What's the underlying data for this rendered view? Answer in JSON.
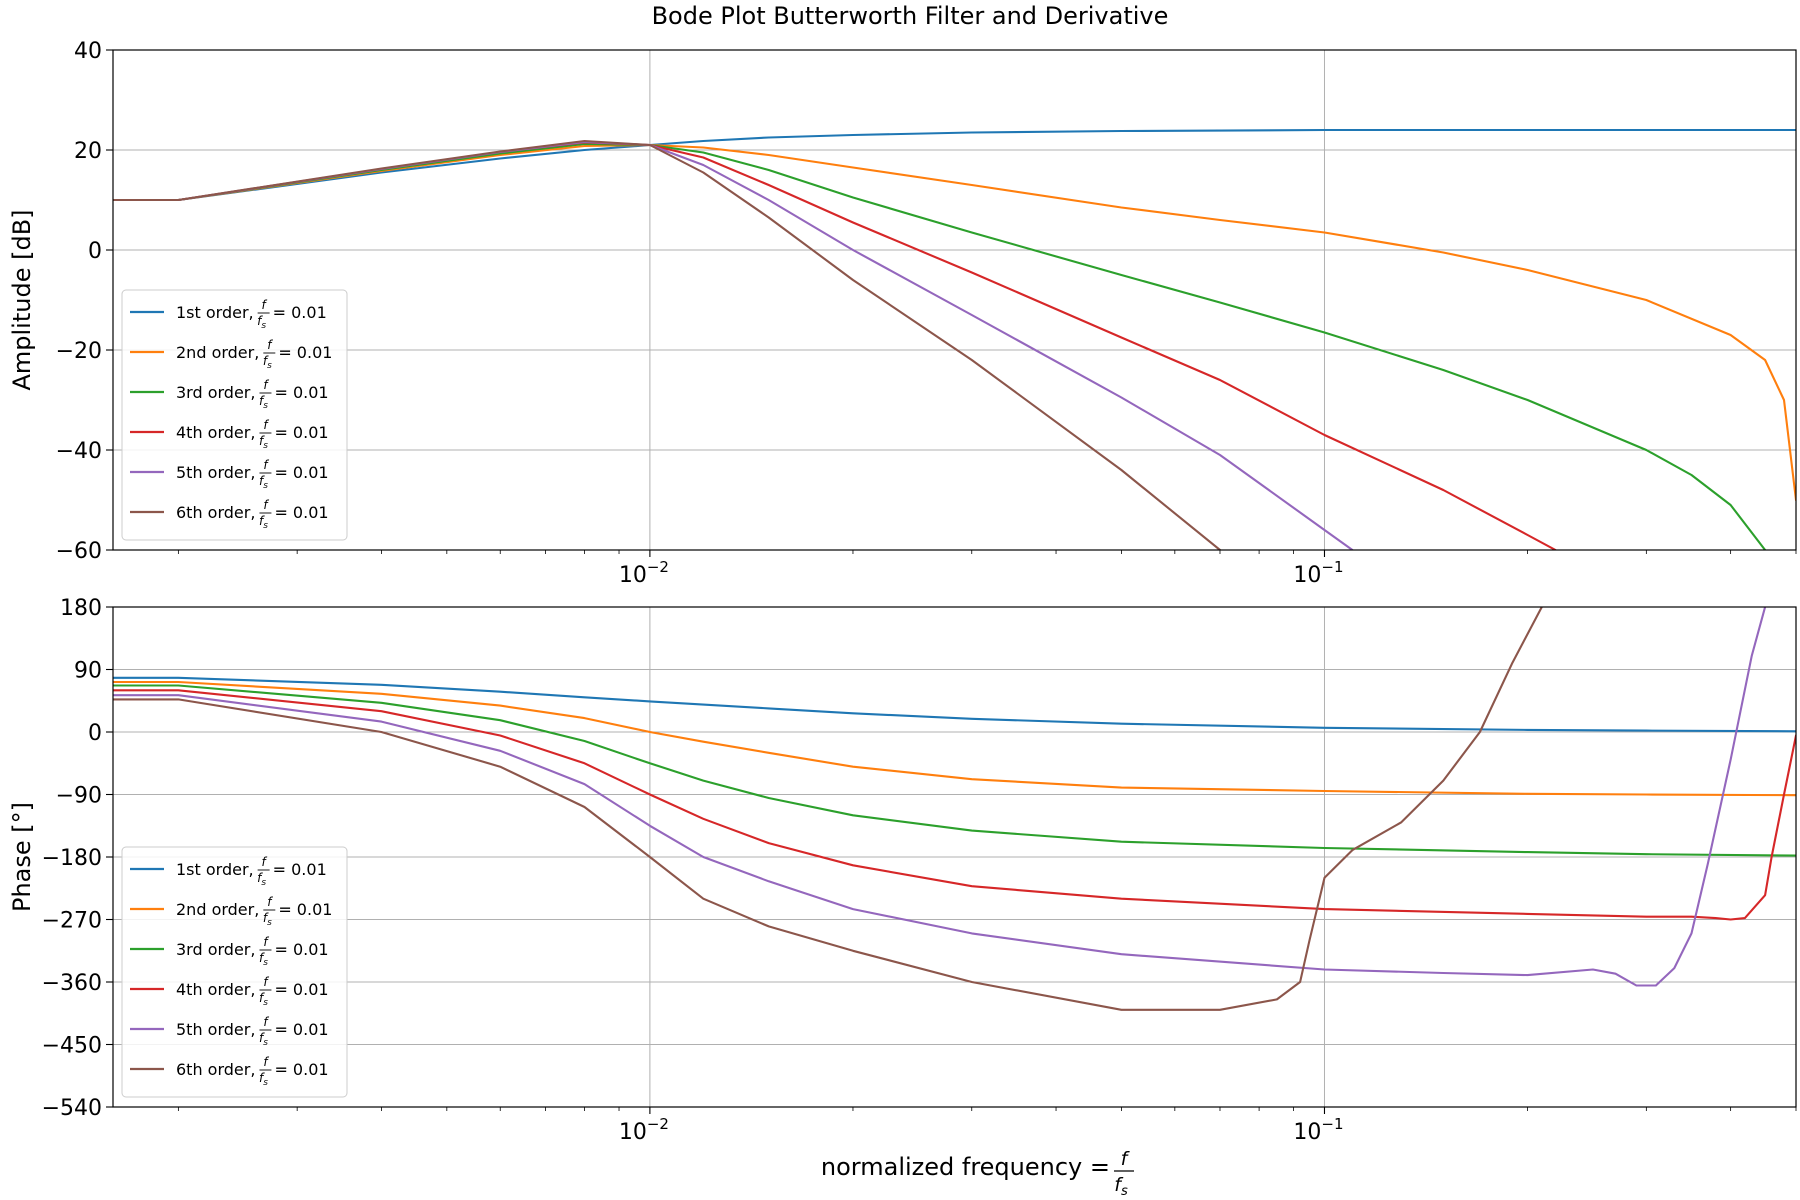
{
  "figure": {
    "title": "Bode Plot Butterworth Filter and Derivative",
    "xlabel_text": "normalized frequency = ",
    "xlabel_num": "f",
    "xlabel_den": "f",
    "xlabel_den_sub": "s"
  },
  "legend_labels": {
    "suffix": " = 0.01",
    "frac_num": "f",
    "frac_den": "f",
    "frac_den_sub": "s"
  },
  "chart_data": [
    {
      "type": "line",
      "title": "Bode Plot Butterworth Filter and Derivative",
      "xscale": "log",
      "xlim": [
        0.0016,
        0.5
      ],
      "xticks": [
        0.01,
        0.1
      ],
      "xtick_labels": [
        {
          "base": "10",
          "exp": "−2"
        },
        {
          "base": "10",
          "exp": "−1"
        }
      ],
      "ylabel": "Amplitude [dB]",
      "ylim": [
        -60,
        40
      ],
      "yticks": [
        40,
        20,
        0,
        -20,
        -40,
        -60
      ],
      "ytick_labels": [
        "40",
        "20",
        "0",
        "−20",
        "−40",
        "−60"
      ],
      "grid": true,
      "legend_position": "lower-left",
      "series": [
        {
          "name": "1st order",
          "color": "#1f77b4",
          "x": [
            0.0016,
            0.002,
            0.004,
            0.006,
            0.008,
            0.01,
            0.012,
            0.015,
            0.02,
            0.03,
            0.05,
            0.1,
            0.2,
            0.3,
            0.4,
            0.5
          ],
          "y": [
            10,
            10,
            15.5,
            18.3,
            20,
            21,
            21.8,
            22.5,
            23,
            23.5,
            23.8,
            24,
            24,
            24,
            24,
            24
          ]
        },
        {
          "name": "2nd order",
          "color": "#ff7f0e",
          "x": [
            0.0016,
            0.002,
            0.004,
            0.006,
            0.008,
            0.01,
            0.012,
            0.015,
            0.02,
            0.03,
            0.05,
            0.07,
            0.1,
            0.15,
            0.2,
            0.3,
            0.4,
            0.45,
            0.48,
            0.5
          ],
          "y": [
            10,
            10,
            15.8,
            19,
            20.8,
            21,
            20.5,
            19,
            16.5,
            13,
            8.5,
            6,
            3.5,
            -0.5,
            -4,
            -10,
            -17,
            -22,
            -30,
            -50
          ]
        },
        {
          "name": "3rd order",
          "color": "#2ca02c",
          "x": [
            0.0016,
            0.002,
            0.004,
            0.006,
            0.008,
            0.01,
            0.012,
            0.015,
            0.02,
            0.03,
            0.05,
            0.07,
            0.1,
            0.15,
            0.2,
            0.3,
            0.35,
            0.4,
            0.45
          ],
          "y": [
            10,
            10,
            16,
            19.3,
            21.2,
            21,
            19.5,
            16,
            10.5,
            3.5,
            -5,
            -10.5,
            -16.5,
            -24,
            -30,
            -40,
            -45,
            -51,
            -60
          ]
        },
        {
          "name": "4th order",
          "color": "#d62728",
          "x": [
            0.0016,
            0.002,
            0.004,
            0.006,
            0.008,
            0.01,
            0.012,
            0.015,
            0.02,
            0.03,
            0.05,
            0.07,
            0.1,
            0.15,
            0.2,
            0.22
          ],
          "y": [
            10,
            10,
            16.2,
            19.6,
            21.5,
            21,
            18.5,
            13,
            5.5,
            -4.5,
            -17.5,
            -26,
            -37,
            -48,
            -57,
            -60
          ]
        },
        {
          "name": "5th order",
          "color": "#9467bd",
          "x": [
            0.0016,
            0.002,
            0.004,
            0.006,
            0.008,
            0.01,
            0.012,
            0.015,
            0.02,
            0.03,
            0.05,
            0.07,
            0.1,
            0.11
          ],
          "y": [
            10,
            10,
            16.2,
            19.6,
            21.6,
            21,
            17,
            10,
            0,
            -13,
            -29.5,
            -41,
            -56,
            -60
          ]
        },
        {
          "name": "6th order",
          "color": "#8c564b",
          "x": [
            0.0016,
            0.002,
            0.004,
            0.006,
            0.008,
            0.01,
            0.012,
            0.015,
            0.02,
            0.03,
            0.05,
            0.07
          ],
          "y": [
            10,
            10,
            16.3,
            19.7,
            21.8,
            21,
            15.5,
            6.5,
            -6,
            -22,
            -44,
            -60
          ]
        }
      ]
    },
    {
      "type": "line",
      "xscale": "log",
      "xlim": [
        0.0016,
        0.5
      ],
      "xticks": [
        0.01,
        0.1
      ],
      "xtick_labels": [
        {
          "base": "10",
          "exp": "−2"
        },
        {
          "base": "10",
          "exp": "−1"
        }
      ],
      "ylabel": "Phase [°]",
      "ylim": [
        -540,
        180
      ],
      "yticks": [
        180,
        90,
        0,
        -90,
        -180,
        -270,
        -360,
        -450,
        -540
      ],
      "ytick_labels": [
        "180",
        "90",
        "0",
        "−90",
        "−180",
        "−270",
        "−360",
        "−450",
        "−540"
      ],
      "grid": true,
      "legend_position": "lower-left",
      "series": [
        {
          "name": "1st order",
          "color": "#1f77b4",
          "x": [
            0.0016,
            0.002,
            0.004,
            0.006,
            0.008,
            0.01,
            0.015,
            0.02,
            0.03,
            0.05,
            0.1,
            0.2,
            0.3,
            0.5
          ],
          "y": [
            78,
            78,
            68,
            58,
            50,
            44,
            34,
            27,
            19,
            12,
            6,
            3,
            2,
            1
          ]
        },
        {
          "name": "2nd order",
          "color": "#ff7f0e",
          "x": [
            0.0016,
            0.002,
            0.004,
            0.006,
            0.008,
            0.01,
            0.012,
            0.015,
            0.02,
            0.03,
            0.05,
            0.1,
            0.2,
            0.3,
            0.5
          ],
          "y": [
            72,
            72,
            55,
            38,
            20,
            0,
            -14,
            -30,
            -50,
            -68,
            -80,
            -85,
            -89,
            -90,
            -91
          ]
        },
        {
          "name": "3rd order",
          "color": "#2ca02c",
          "x": [
            0.0016,
            0.002,
            0.004,
            0.006,
            0.008,
            0.01,
            0.012,
            0.015,
            0.02,
            0.03,
            0.05,
            0.1,
            0.2,
            0.3,
            0.5
          ],
          "y": [
            67,
            67,
            42,
            17,
            -13,
            -45,
            -70,
            -95,
            -120,
            -142,
            -158,
            -167,
            -173,
            -176,
            -178
          ]
        },
        {
          "name": "4th order",
          "color": "#d62728",
          "x": [
            0.0016,
            0.002,
            0.004,
            0.006,
            0.008,
            0.01,
            0.012,
            0.015,
            0.02,
            0.03,
            0.05,
            0.1,
            0.2,
            0.3,
            0.35,
            0.38,
            0.4,
            0.42,
            0.45,
            0.46,
            0.48,
            0.5
          ],
          "y": [
            60,
            60,
            30,
            -5,
            -45,
            -90,
            -125,
            -160,
            -192,
            -222,
            -240,
            -255,
            -262,
            -266,
            -266,
            -268,
            -270,
            -268,
            -235,
            -180,
            -90,
            -5
          ]
        },
        {
          "name": "5th order",
          "color": "#9467bd",
          "x": [
            0.0016,
            0.002,
            0.004,
            0.006,
            0.008,
            0.01,
            0.012,
            0.015,
            0.02,
            0.03,
            0.05,
            0.1,
            0.15,
            0.2,
            0.25,
            0.27,
            0.29,
            0.31,
            0.33,
            0.35,
            0.37,
            0.4,
            0.43,
            0.45
          ],
          "y": [
            53,
            53,
            15,
            -27,
            -75,
            -135,
            -180,
            -215,
            -255,
            -290,
            -320,
            -342,
            -347,
            -350,
            -342,
            -348,
            -365,
            -365,
            -340,
            -290,
            -190,
            -40,
            110,
            180
          ]
        },
        {
          "name": "6th order",
          "color": "#8c564b",
          "x": [
            0.0016,
            0.002,
            0.004,
            0.006,
            0.008,
            0.01,
            0.012,
            0.015,
            0.02,
            0.03,
            0.05,
            0.07,
            0.085,
            0.092,
            0.095,
            0.1,
            0.11,
            0.13,
            0.15,
            0.17,
            0.19,
            0.21
          ],
          "y": [
            47,
            47,
            0,
            -50,
            -108,
            -180,
            -240,
            -280,
            -315,
            -360,
            -400,
            -400,
            -385,
            -360,
            -300,
            -210,
            -170,
            -130,
            -70,
            0,
            100,
            180
          ]
        }
      ]
    }
  ]
}
